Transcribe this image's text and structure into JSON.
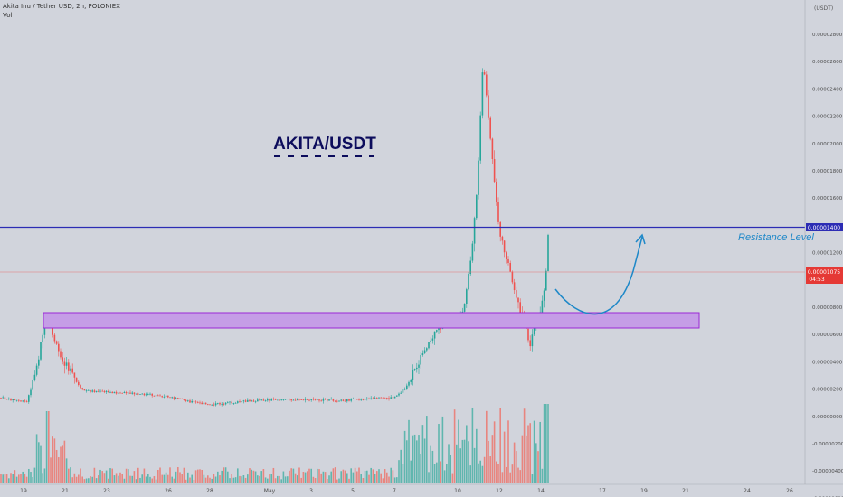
{
  "header": {
    "symbol_line": "Akita Inu / Tether USD, 2h, POLONIEX",
    "vol_label": "Vol",
    "currency_label": "(USDT)"
  },
  "annotations": {
    "title": "AKITA/USDT",
    "resistance_label": "Resistance Level"
  },
  "price_marker": {
    "resistance_price": "0.00001400",
    "last_price": "0.00001075",
    "countdown": "04:53"
  },
  "colors": {
    "background": "#d1d4dc",
    "up_candle": "#26a69a",
    "down_candle": "#ef5350",
    "resistance_line": "#2c2cb4",
    "support_zone_fill": "#c59de6",
    "support_zone_border": "#9b27d6",
    "arrow": "#1e88c8",
    "title_text": "#0c0c5c",
    "last_price_tag": "#e53935"
  },
  "chart_data": {
    "type": "candlestick",
    "pair": "AKITA/USDT",
    "exchange": "POLONIEX",
    "interval": "2h",
    "y_axis_ticks": [
      "0.00002800",
      "0.00002600",
      "0.00002400",
      "0.00002200",
      "0.00002000",
      "0.00001800",
      "0.00001600",
      "0.00001400",
      "0.00001200",
      "0.00001000",
      "0.00000800",
      "0.00000600",
      "0.00000400",
      "0.00000200",
      "0.00000000",
      "-0.00000200",
      "-0.00000400",
      "-0.00000600"
    ],
    "x_axis_ticks": [
      "19",
      "21",
      "23",
      "26",
      "28",
      "May",
      "3",
      "5",
      "7",
      "10",
      "12",
      "14",
      "17",
      "19",
      "21",
      "24",
      "26"
    ],
    "ylim": [
      -7e-07,
      3.1e-06
    ],
    "price_path": [
      {
        "date": "Apr 18",
        "close": 3e-07
      },
      {
        "date": "Apr 19",
        "close": 3e-07
      },
      {
        "date": "Apr 20",
        "close": 6e-07
      },
      {
        "date": "Apr 20",
        "close": 9e-07
      },
      {
        "date": "Apr 21",
        "close": 6e-07
      },
      {
        "date": "Apr 22",
        "close": 2e-07
      },
      {
        "date": "Apr 25",
        "close": 2e-07
      },
      {
        "date": "Apr 28",
        "close": 1e-07
      },
      {
        "date": "May 1",
        "close": 2e-07
      },
      {
        "date": "May 3",
        "close": 2e-07
      },
      {
        "date": "May 6",
        "close": 2e-07
      },
      {
        "date": "May 7",
        "close": 3e-07
      },
      {
        "date": "May 8",
        "close": 6e-07
      },
      {
        "date": "May 9",
        "close": 7e-07
      },
      {
        "date": "May 10",
        "close": 1.2e-06
      },
      {
        "date": "May 11",
        "close": 2.7e-06
      },
      {
        "date": "May 12",
        "close": 1.6e-06
      },
      {
        "date": "May 13",
        "close": 8e-07
      },
      {
        "date": "May 13",
        "close": 6e-07
      },
      {
        "date": "May 14",
        "close": 1.1e-06
      }
    ],
    "resistance_level": 1.4e-05,
    "support_zone": [
      7e-07,
      8e-07
    ],
    "last_price": 1.075e-05,
    "projection": "dip to support zone then rise to resistance"
  }
}
